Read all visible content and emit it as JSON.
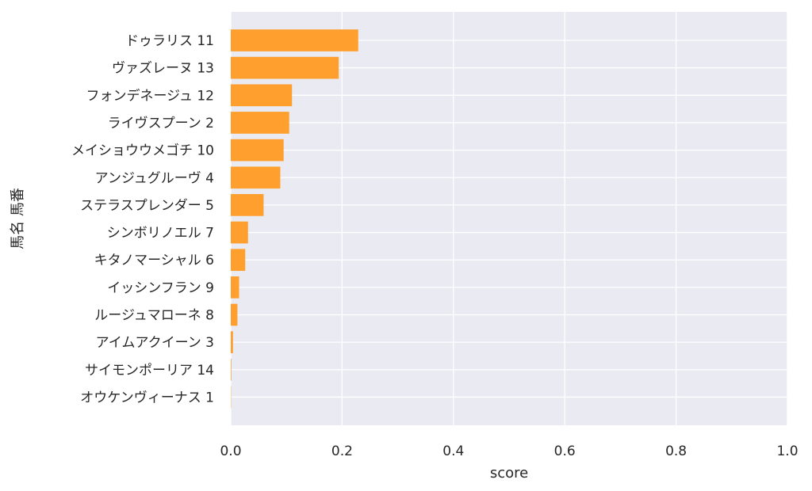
{
  "chart_data": {
    "type": "bar",
    "orientation": "horizontal",
    "xlabel": "score",
    "ylabel": "馬名 馬番",
    "xlim": [
      0.0,
      1.0
    ],
    "xticks": [
      "0.0",
      "0.2",
      "0.4",
      "0.6",
      "0.8",
      "1.0"
    ],
    "grid": true,
    "categories": [
      "ドゥラリス 11",
      "ヴァズレーヌ 13",
      "フォンデネージュ 12",
      "ライヴスプーン 2",
      "メイショウウメゴチ 10",
      "アンジュグルーヴ 4",
      "ステラスプレンダー 5",
      "シンボリノエル 7",
      "キタノマーシャル 6",
      "イッシンフラン 9",
      "ルージュマローネ 8",
      "アイムアクイーン 3",
      "サイモンポーリア 14",
      "オウケンヴィーナス 1"
    ],
    "values": [
      0.229,
      0.194,
      0.11,
      0.105,
      0.095,
      0.089,
      0.059,
      0.031,
      0.026,
      0.015,
      0.012,
      0.004,
      0.001,
      0.0005
    ],
    "colors": {
      "bar": "#ff9f2e",
      "plot_bg": "#eaeaf2",
      "grid": "#ffffff",
      "text": "#262626"
    }
  }
}
